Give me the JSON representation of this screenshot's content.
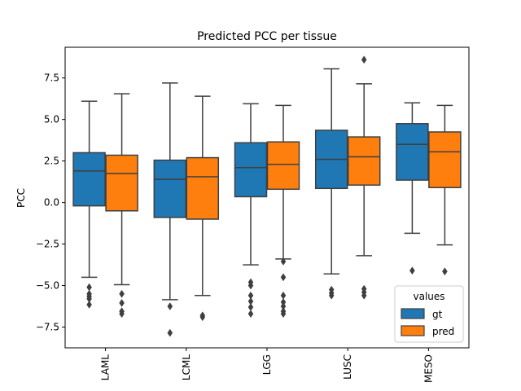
{
  "chart_data": {
    "type": "box",
    "title": "Predicted PCC per tissue",
    "xlabel": "",
    "ylabel": "PCC",
    "ylim": [
      -8.75,
      9.35
    ],
    "yticks": [
      -7.5,
      -5.0,
      -2.5,
      0.0,
      2.5,
      5.0,
      7.5
    ],
    "ytick_labels": [
      "−7.5",
      "−5.0",
      "−2.5",
      "0.0",
      "2.5",
      "5.0",
      "7.5"
    ],
    "categories": [
      "LAML",
      "LCML",
      "LGG",
      "LUSC",
      "MESO"
    ],
    "grid": false,
    "legend": {
      "title": "values",
      "position": "lower right"
    },
    "series": [
      {
        "name": "gt",
        "color": "#1f77b4",
        "boxes": [
          {
            "whislo": -4.5,
            "q1": -0.2,
            "med": 1.9,
            "q3": 3.0,
            "whishi": 6.1,
            "fliers": [
              -5.1,
              -5.5,
              -5.65,
              -5.8,
              -6.15
            ]
          },
          {
            "whislo": -5.85,
            "q1": -0.9,
            "med": 1.4,
            "q3": 2.55,
            "whishi": 7.2,
            "fliers": [
              -6.25,
              -7.85
            ]
          },
          {
            "whislo": -3.75,
            "q1": 0.35,
            "med": 2.1,
            "q3": 3.6,
            "whishi": 5.95,
            "fliers": [
              -4.8,
              -5.0,
              -5.6,
              -5.95,
              -6.3,
              -6.7
            ]
          },
          {
            "whislo": -4.3,
            "q1": 0.85,
            "med": 2.6,
            "q3": 4.35,
            "whishi": 8.05,
            "fliers": [
              -5.25,
              -5.45,
              -5.6
            ]
          },
          {
            "whislo": -1.85,
            "q1": 1.35,
            "med": 3.5,
            "q3": 4.75,
            "whishi": 6.0,
            "fliers": [
              -4.1
            ]
          }
        ]
      },
      {
        "name": "pred",
        "color": "#ff7f0e",
        "boxes": [
          {
            "whislo": -4.95,
            "q1": -0.5,
            "med": 1.75,
            "q3": 2.85,
            "whishi": 6.55,
            "fliers": [
              -5.5,
              -6.05,
              -6.55,
              -6.7
            ]
          },
          {
            "whislo": -5.6,
            "q1": -1.0,
            "med": 1.55,
            "q3": 2.7,
            "whishi": 6.4,
            "fliers": [
              -6.8,
              -6.9
            ]
          },
          {
            "whislo": -3.4,
            "q1": 0.8,
            "med": 2.3,
            "q3": 3.65,
            "whishi": 5.85,
            "fliers": [
              -3.55,
              -4.5,
              -5.6,
              -6.0,
              -6.25,
              -6.55,
              -6.7
            ]
          },
          {
            "whislo": -3.2,
            "q1": 1.05,
            "med": 2.75,
            "q3": 3.95,
            "whishi": 7.15,
            "fliers": [
              8.6,
              -5.2,
              -5.4,
              -5.6
            ]
          },
          {
            "whislo": -2.55,
            "q1": 0.9,
            "med": 3.05,
            "q3": 4.25,
            "whishi": 5.85,
            "fliers": [
              -4.15
            ]
          }
        ]
      }
    ]
  }
}
